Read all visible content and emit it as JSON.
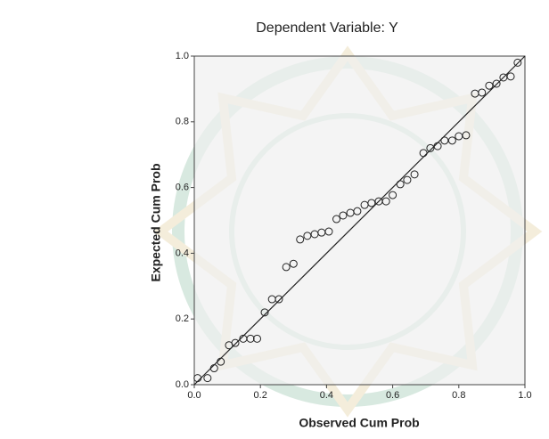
{
  "chart_data": {
    "type": "scatter",
    "title": "Dependent Variable: Y",
    "x_label": "Observed Cum Prob",
    "y_label": "Expected Cum Prob",
    "xlim": [
      0,
      1
    ],
    "ylim": [
      0,
      1
    ],
    "xticks": [
      {
        "value": 0,
        "label": "0.0"
      },
      0.2,
      0.4,
      0.6,
      0.8,
      {
        "value": 1,
        "label": "1.0"
      }
    ],
    "yticks": [
      {
        "value": 0,
        "label": "0.0"
      },
      0.2,
      0.4,
      0.6,
      0.8,
      {
        "value": 1,
        "label": "1.0"
      }
    ],
    "color": "#222222",
    "x": [
      0.01,
      0.04,
      0.06,
      0.08,
      0.105,
      0.124,
      0.148,
      0.17,
      0.19,
      0.213,
      0.235,
      0.256,
      0.278,
      0.3,
      0.32,
      0.342,
      0.364,
      0.385,
      0.407,
      0.43,
      0.45,
      0.472,
      0.493,
      0.515,
      0.536,
      0.558,
      0.58,
      0.6,
      0.623,
      0.644,
      0.666,
      0.693,
      0.714,
      0.736,
      0.757,
      0.78,
      0.8,
      0.822,
      0.849,
      0.87,
      0.892,
      0.914,
      0.935,
      0.957,
      0.978
    ],
    "y": [
      0.02,
      0.02,
      0.05,
      0.07,
      0.12,
      0.127,
      0.14,
      0.14,
      0.14,
      0.22,
      0.26,
      0.26,
      0.358,
      0.368,
      0.442,
      0.453,
      0.458,
      0.463,
      0.466,
      0.504,
      0.515,
      0.523,
      0.528,
      0.547,
      0.553,
      0.558,
      0.558,
      0.577,
      0.61,
      0.623,
      0.64,
      0.705,
      0.72,
      0.726,
      0.743,
      0.743,
      0.756,
      0.759,
      0.886,
      0.889,
      0.91,
      0.916,
      0.935,
      0.938,
      0.98
    ]
  }
}
